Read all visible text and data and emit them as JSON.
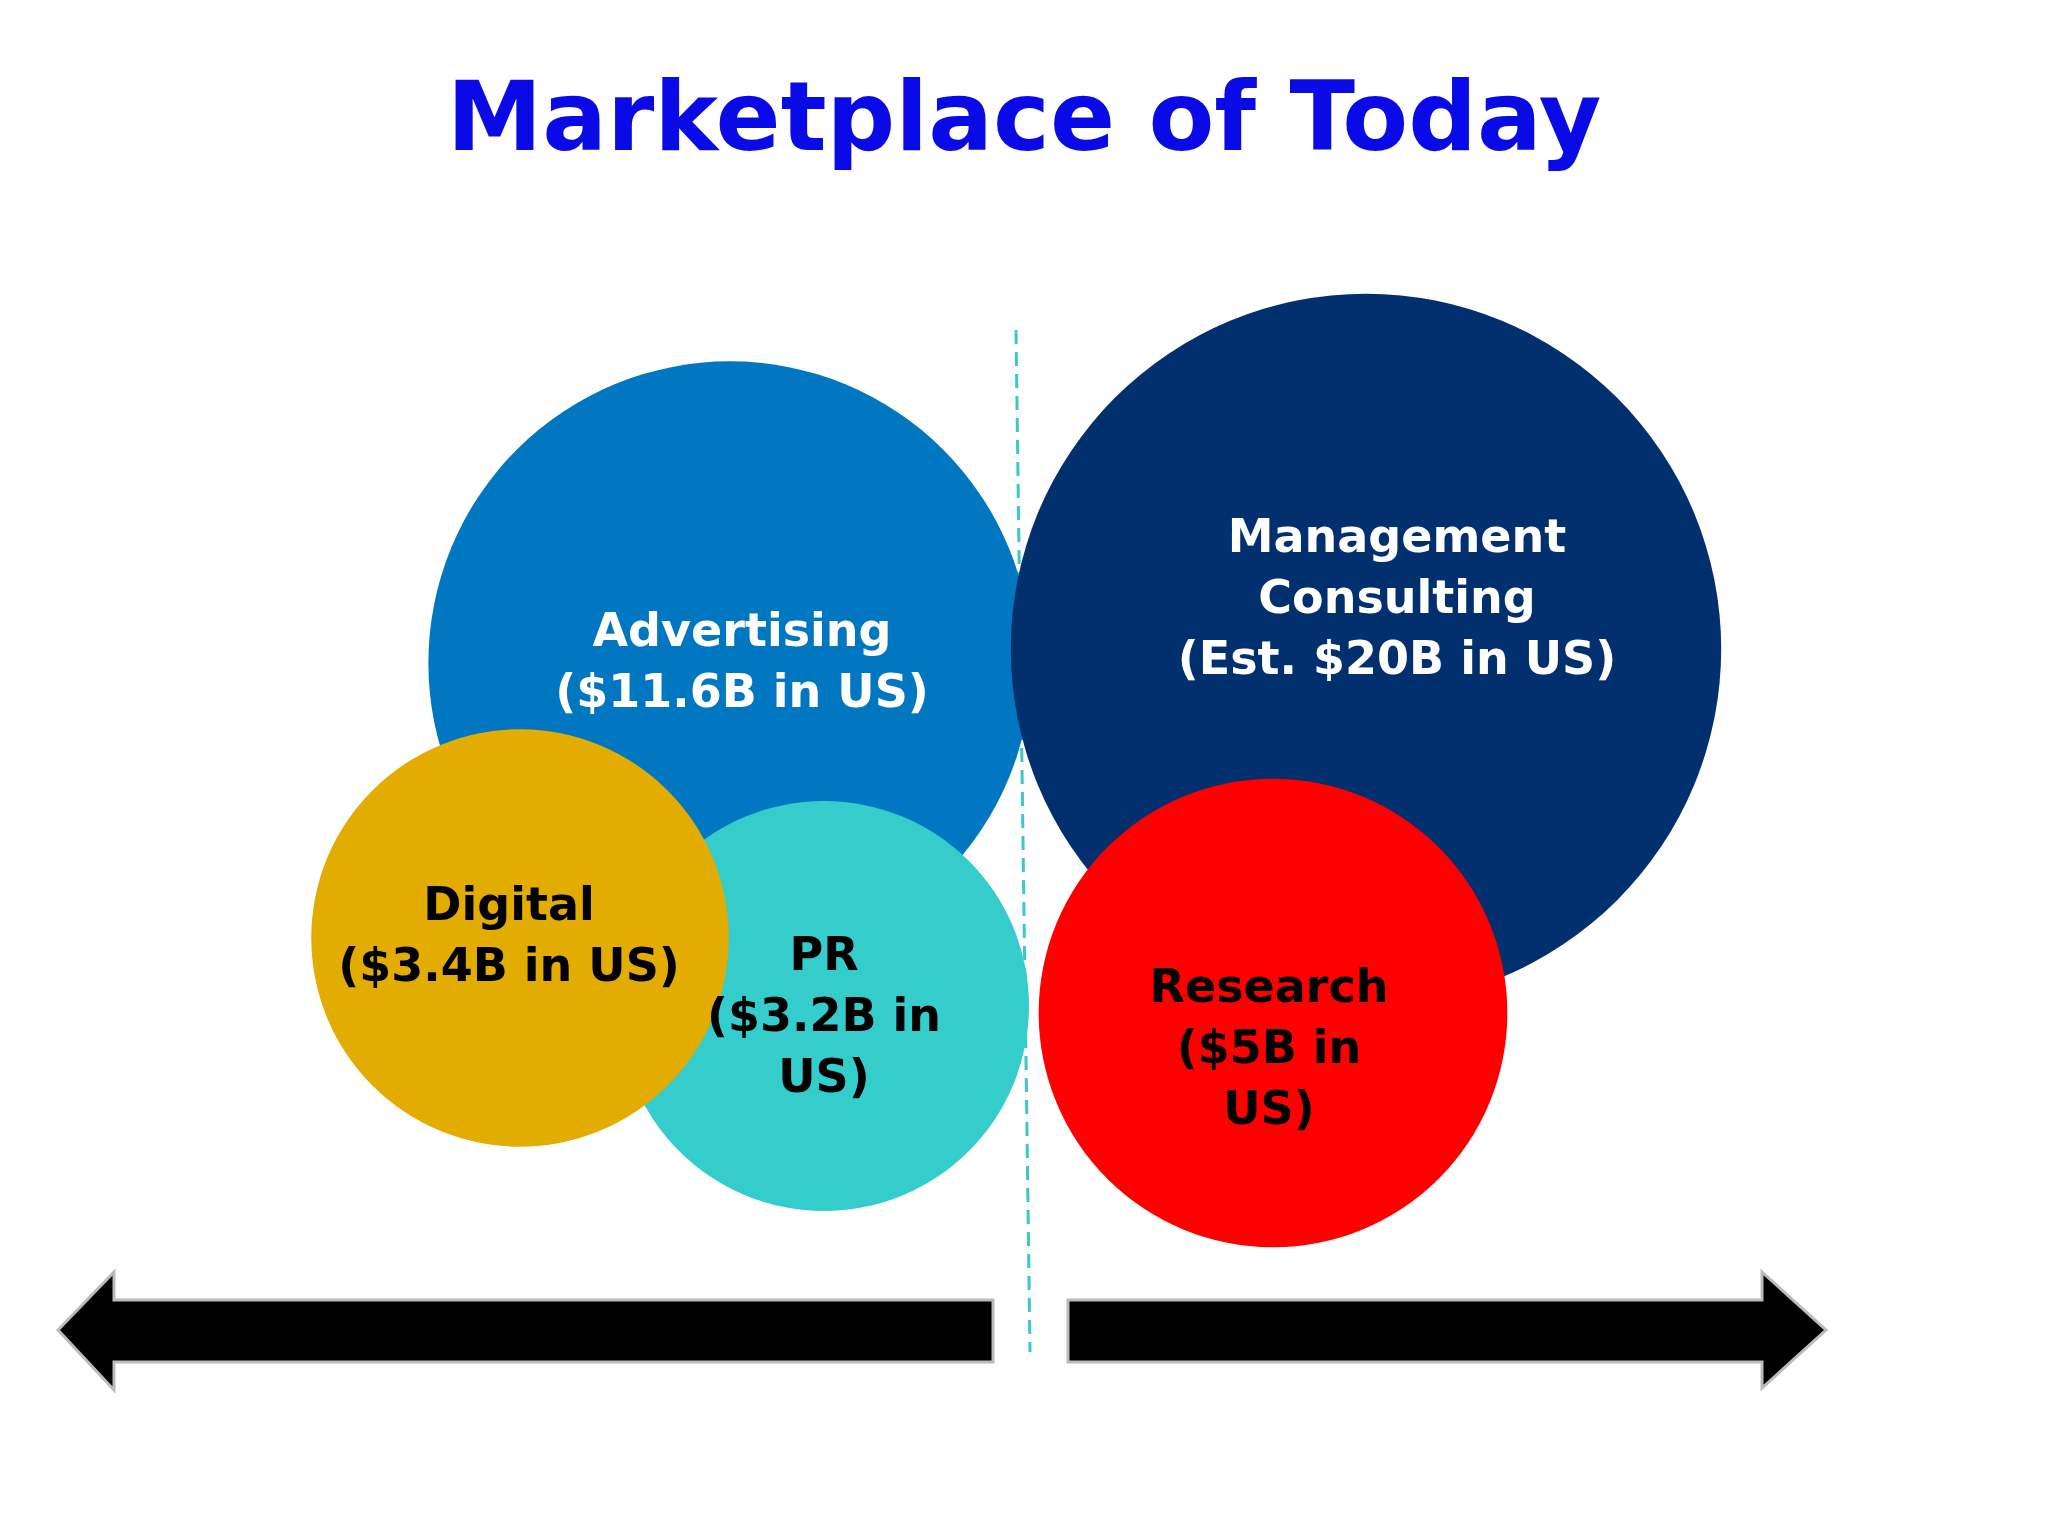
{
  "chart_data": {
    "type": "other",
    "title": "Marketplace of Today",
    "categories": [
      "Advertising",
      "Digital",
      "PR",
      "Management Consulting",
      "Research"
    ],
    "values": [
      11.6,
      3.4,
      3.2,
      20,
      5
    ],
    "value_labels": [
      "($11.6B in US)",
      "($3.4B in US)",
      "($3.2B in US)",
      "(Est. $20B in US)",
      "($5B in US)"
    ],
    "colors": [
      "#0077c0",
      "#e3ac00",
      "#35cccc",
      "#02306e",
      "#ff0000"
    ]
  }
}
